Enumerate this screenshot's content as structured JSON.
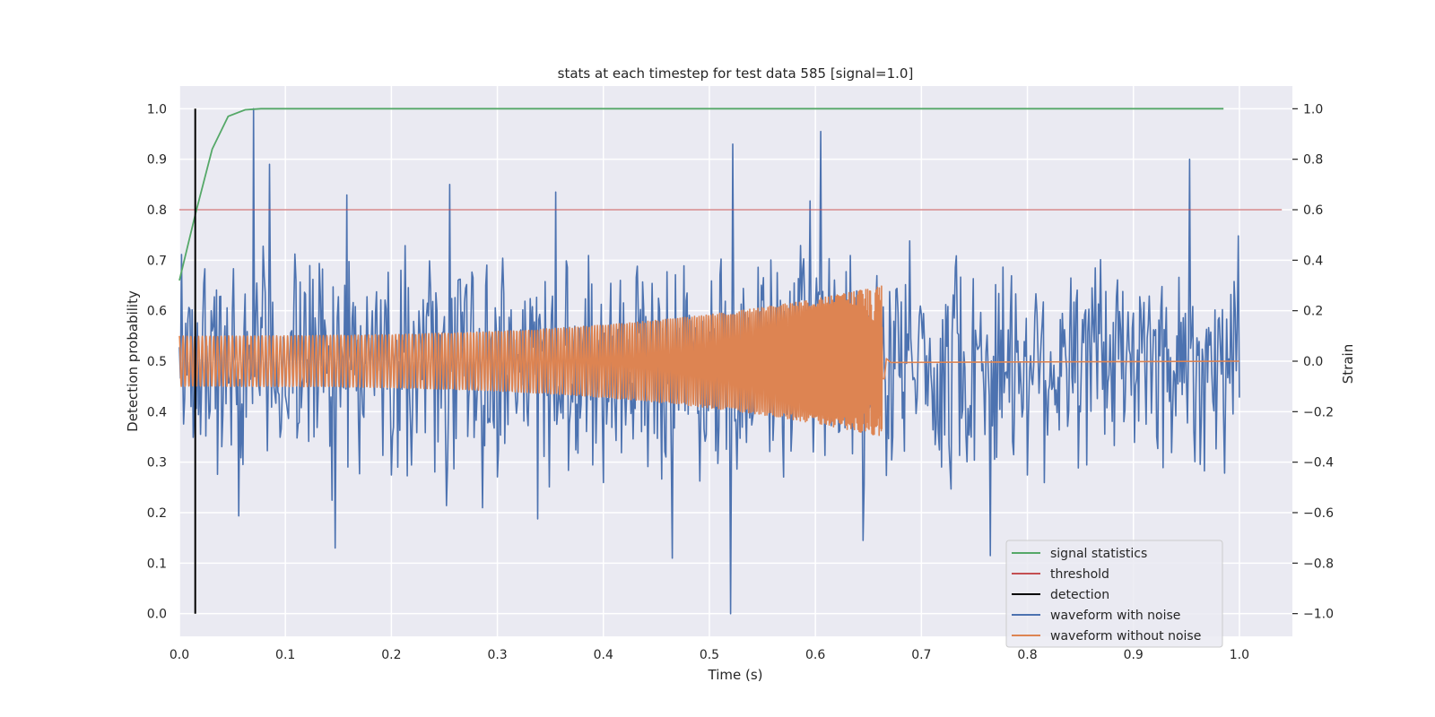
{
  "chart_data": {
    "type": "line",
    "title": "stats at each timestep for test data 585 [signal=1.0]",
    "xlabel": "Time (s)",
    "ylabel": "Detection probability",
    "y2label": "Strain",
    "xlim": [
      0.0,
      1.05
    ],
    "ylim": [
      -0.045,
      1.045
    ],
    "y2lim": [
      -1.09,
      1.09
    ],
    "xticks": [
      "0.0",
      "0.1",
      "0.2",
      "0.3",
      "0.4",
      "0.5",
      "0.6",
      "0.7",
      "0.8",
      "0.9",
      "1.0"
    ],
    "yticks": [
      "0.0",
      "0.1",
      "0.2",
      "0.3",
      "0.4",
      "0.5",
      "0.6",
      "0.7",
      "0.8",
      "0.9",
      "1.0"
    ],
    "y2ticks": [
      "−1.0",
      "−0.8",
      "−0.6",
      "−0.4",
      "−0.2",
      "0.0",
      "0.2",
      "0.4",
      "0.6",
      "0.8",
      "1.0"
    ],
    "grid": true,
    "legend_position": "lower-right",
    "series": [
      {
        "name": "signal statistics",
        "color": "#55a868",
        "axis": "left",
        "x": [
          0.0,
          0.015,
          0.031,
          0.046,
          0.062,
          0.077,
          0.3,
          0.6,
          0.985
        ],
        "y": [
          0.66,
          0.79,
          0.92,
          0.985,
          0.998,
          1.0,
          1.0,
          1.0,
          1.0
        ]
      },
      {
        "name": "threshold",
        "color": "#c44e52",
        "axis": "left",
        "x": [
          0.0,
          1.04
        ],
        "y": [
          0.8,
          0.8
        ]
      },
      {
        "name": "detection",
        "color": "#000000",
        "axis": "left",
        "x": [
          0.015,
          0.015
        ],
        "y": [
          0.0,
          1.0
        ]
      },
      {
        "name": "waveform with noise",
        "color": "#4c72b0",
        "axis": "right",
        "x_range": [
          0.0,
          1.0
        ],
        "peaks": [
          [
            0.07,
            1.0
          ],
          [
            0.085,
            0.78
          ],
          [
            0.52,
            -1.0
          ],
          [
            0.605,
            0.91
          ],
          [
            0.522,
            0.86
          ],
          [
            0.953,
            0.8
          ],
          [
            0.355,
            0.67
          ],
          [
            0.255,
            0.7
          ],
          [
            0.465,
            -0.78
          ],
          [
            0.765,
            -0.77
          ],
          [
            0.147,
            -0.74
          ],
          [
            0.645,
            -0.71
          ]
        ],
        "noise_amplitude": 0.42
      },
      {
        "name": "waveform without noise",
        "color": "#dd8452",
        "axis": "right",
        "x_range": [
          0.0,
          0.665
        ],
        "flat_until": 1.0,
        "start_amplitude": 0.1,
        "end_amplitude": 0.3
      }
    ],
    "legend": [
      "signal statistics",
      "threshold",
      "detection",
      "waveform with noise",
      "waveform without noise"
    ]
  }
}
